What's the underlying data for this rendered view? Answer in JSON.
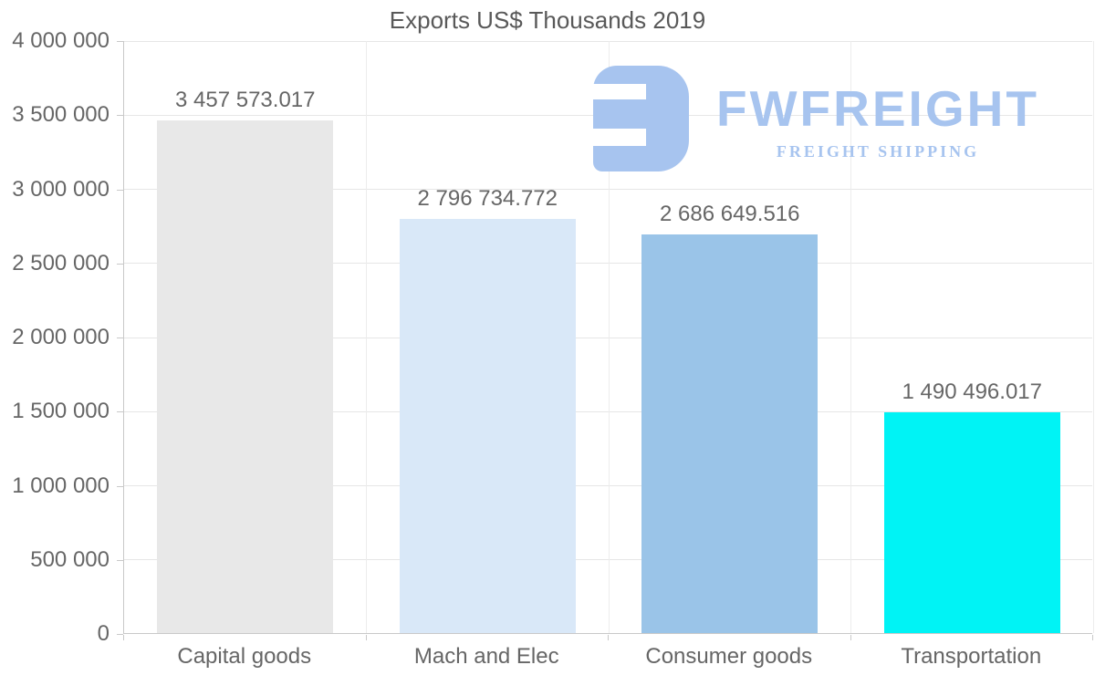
{
  "title": "Exports US$ Thousands 2019",
  "watermark": {
    "brand": "FWFREIGHT",
    "tagline": "FREIGHT SHIPPING",
    "color": "#a7c4ef"
  },
  "chart_data": {
    "type": "bar",
    "title": "Exports US$ Thousands 2019",
    "categories": [
      "Capital goods",
      "Mach and Elec",
      "Consumer goods",
      "Transportation"
    ],
    "values": [
      3457573.017,
      2796734.772,
      2686649.516,
      1490496.017
    ],
    "value_labels": [
      "3 457 573.017",
      "2 796 734.772",
      "2 686 649.516",
      "1 490 496.017"
    ],
    "bar_colors": [
      "#e8e8e8",
      "#d9e8f8",
      "#9ac4e8",
      "#00f3f5"
    ],
    "xlabel": "",
    "ylabel": "",
    "ylim": [
      0,
      4000000
    ],
    "ytick_step": 500000,
    "ytick_labels": [
      "0",
      "500 000",
      "1 000 000",
      "1 500 000",
      "2 000 000",
      "2 500 000",
      "3 000 000",
      "3 500 000",
      "4 000 000"
    ],
    "grid": true,
    "legend": false
  }
}
